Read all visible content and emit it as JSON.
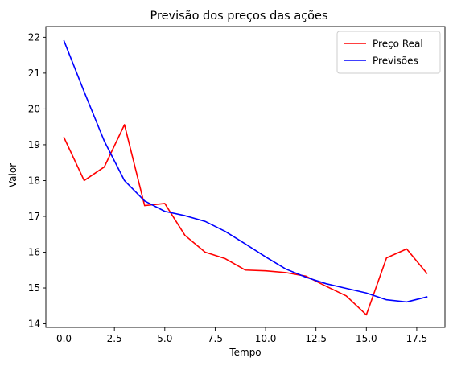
{
  "chart_data": {
    "type": "line",
    "title": "Previsão dos preços das ações",
    "xlabel": "Tempo",
    "ylabel": "Valor",
    "xlim": [
      -0.9,
      18.9
    ],
    "ylim": [
      13.9,
      22.3
    ],
    "xticks": [
      0.0,
      2.5,
      5.0,
      7.5,
      10.0,
      12.5,
      15.0,
      17.5
    ],
    "xtick_labels": [
      "0.0",
      "2.5",
      "5.0",
      "7.5",
      "10.0",
      "12.5",
      "15.0",
      "17.5"
    ],
    "yticks": [
      14,
      15,
      16,
      17,
      18,
      19,
      20,
      21,
      22
    ],
    "ytick_labels": [
      "14",
      "15",
      "16",
      "17",
      "18",
      "19",
      "20",
      "21",
      "22"
    ],
    "grid": false,
    "legend_position": "top-right",
    "x": [
      0,
      1,
      2,
      3,
      4,
      5,
      6,
      7,
      8,
      9,
      10,
      11,
      12,
      13,
      14,
      15,
      16,
      17,
      18
    ],
    "series": [
      {
        "name": "Preço Real",
        "color": "#ff0000",
        "values": [
          19.2,
          18.0,
          18.38,
          19.56,
          17.3,
          17.36,
          16.47,
          16.0,
          15.82,
          15.5,
          15.48,
          15.43,
          15.33,
          15.05,
          14.78,
          14.25,
          15.84,
          16.09,
          15.41
        ]
      },
      {
        "name": "Previsões",
        "color": "#0000ff",
        "values": [
          21.9,
          20.48,
          19.1,
          18.0,
          17.43,
          17.14,
          17.02,
          16.86,
          16.58,
          16.23,
          15.87,
          15.53,
          15.3,
          15.12,
          14.99,
          14.86,
          14.67,
          14.61,
          14.75
        ]
      }
    ]
  }
}
